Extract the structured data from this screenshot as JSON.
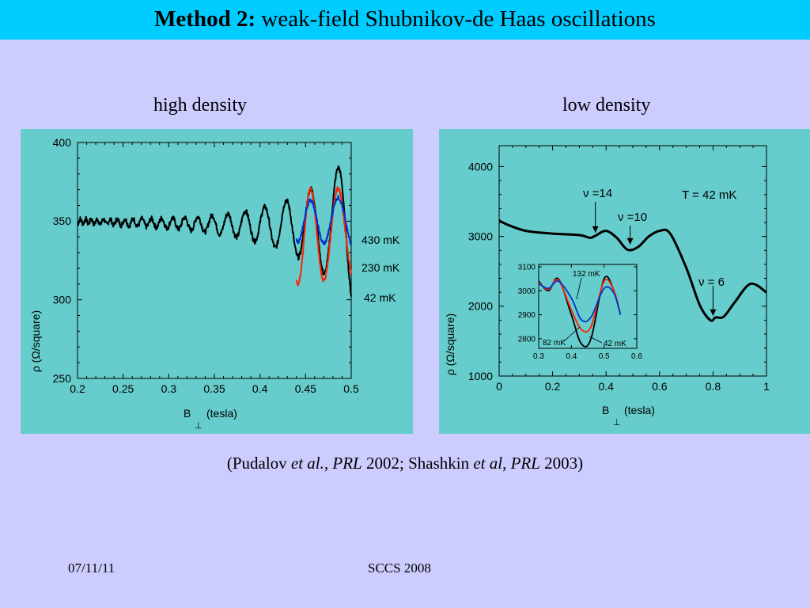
{
  "slide": {
    "title_bold": "Method 2:",
    "title_rest": " weak-field Shubnikov-de Haas oscillations",
    "footer_date": "07/11/11",
    "footer_event": "SCCS 2008"
  },
  "citation": {
    "p1": "(Pudalov ",
    "i1": "et al., PRL",
    "p2": " 2002; Shashkin ",
    "i2": "et al",
    "p3": ", ",
    "i3": "PRL",
    "p4": " 2003)"
  },
  "colors": {
    "title_bar": "#00ccff",
    "slide_background": "#ccccff",
    "panel_background": "#66cccc",
    "trace_42mK": "#000000",
    "trace_230mK": "#ff2200",
    "trace_430mK": "#0033cc",
    "trace_132mK": "#0033cc"
  },
  "chart_data": [
    {
      "heading": "high density",
      "type": "line",
      "xlabel": "B",
      "xlabel_sub": "⊥",
      "xlabel_unit": "(tesla)",
      "ylabel": "ρ (Ω/square)",
      "xlim": [
        0.2,
        0.5
      ],
      "ylim": [
        250,
        400
      ],
      "xticks": [
        "0.2",
        "0.25",
        "0.3",
        "0.35",
        "0.4",
        "0.45",
        "0.5"
      ],
      "yticks": [
        "250",
        "300",
        "350",
        "400"
      ],
      "grid": false,
      "legend_labels": [
        "430 mK",
        "230 mK",
        "42 mK"
      ],
      "series": [
        {
          "name": "42 mK",
          "color": "#000000",
          "model": {
            "x_start": 0.2,
            "x_end": 0.5,
            "base_start": 350,
            "base_end": 346,
            "amp_start": 1.5,
            "amp_end": 47,
            "period_start": 0.01,
            "period_end": 0.03,
            "x_min_at": 0.47,
            "noise": 1.6
          },
          "samples": [
            {
              "x": 0.2,
              "y": 350
            },
            {
              "x": 0.32,
              "y": 345
            },
            {
              "x": 0.4,
              "y": 320
            },
            {
              "x": 0.47,
              "y": 305
            },
            {
              "x": 0.485,
              "y": 390
            },
            {
              "x": 0.5,
              "y": 300
            }
          ]
        },
        {
          "name": "230 mK",
          "color": "#ff2200",
          "model": {
            "x_start": 0.44,
            "x_end": 0.5,
            "base_start": 340,
            "base_end": 343,
            "amp_start": 30,
            "amp_end": 28,
            "period_start": 0.028,
            "period_end": 0.03,
            "x_min_at": 0.47,
            "noise": 1.2
          },
          "samples": [
            {
              "x": 0.44,
              "y": 342
            },
            {
              "x": 0.455,
              "y": 368
            },
            {
              "x": 0.47,
              "y": 322
            },
            {
              "x": 0.485,
              "y": 375
            },
            {
              "x": 0.5,
              "y": 318
            }
          ]
        },
        {
          "name": "430 mK",
          "color": "#0033cc",
          "model": {
            "x_start": 0.44,
            "x_end": 0.5,
            "base_start": 350,
            "base_end": 350,
            "amp_start": 13,
            "amp_end": 16,
            "period_start": 0.028,
            "period_end": 0.03,
            "x_min_at": 0.47,
            "noise": 1.2
          },
          "samples": [
            {
              "x": 0.44,
              "y": 348
            },
            {
              "x": 0.455,
              "y": 360
            },
            {
              "x": 0.47,
              "y": 337
            },
            {
              "x": 0.485,
              "y": 366
            },
            {
              "x": 0.5,
              "y": 334
            }
          ]
        }
      ]
    },
    {
      "heading": "low density",
      "type": "line",
      "xlabel": "B",
      "xlabel_sub": "⊥",
      "xlabel_unit": "(tesla)",
      "ylabel": "ρ (Ω/square)",
      "xlim": [
        0,
        1
      ],
      "ylim": [
        1000,
        4300
      ],
      "xticks": [
        "0",
        "0.2",
        "0.4",
        "0.6",
        "0.8",
        "1"
      ],
      "yticks": [
        "1000",
        "2000",
        "3000",
        "4000"
      ],
      "grid": false,
      "annotations": [
        "ν =14",
        "ν =10",
        "ν = 6",
        "T = 42 mK"
      ],
      "annotation_x": [
        0.36,
        0.49,
        0.8
      ],
      "series": [
        {
          "name": "T = 42 mK",
          "color": "#000000",
          "points": [
            [
              0.0,
              3230
            ],
            [
              0.03,
              3170
            ],
            [
              0.1,
              3080
            ],
            [
              0.2,
              3040
            ],
            [
              0.3,
              3020
            ],
            [
              0.34,
              2980
            ],
            [
              0.36,
              3010
            ],
            [
              0.4,
              3080
            ],
            [
              0.44,
              2980
            ],
            [
              0.48,
              2810
            ],
            [
              0.52,
              2850
            ],
            [
              0.56,
              3000
            ],
            [
              0.6,
              3080
            ],
            [
              0.64,
              3040
            ],
            [
              0.7,
              2550
            ],
            [
              0.75,
              2020
            ],
            [
              0.79,
              1800
            ],
            [
              0.81,
              1840
            ],
            [
              0.84,
              1850
            ],
            [
              0.88,
              2050
            ],
            [
              0.94,
              2320
            ],
            [
              1.0,
              2200
            ]
          ]
        }
      ],
      "inset": {
        "xlim": [
          0.3,
          0.6
        ],
        "ylim": [
          2760,
          3110
        ],
        "xticks": [
          "0.3",
          "0.4",
          "0.5",
          "0.6"
        ],
        "yticks": [
          "2800",
          "2900",
          "3000",
          "3100"
        ],
        "labels": [
          "132 mK",
          "82 mK",
          "42 mK"
        ],
        "series": [
          {
            "name": "42 mK",
            "color": "#000000",
            "points": [
              [
                0.3,
                3040
              ],
              [
                0.33,
                3000
              ],
              [
                0.36,
                3050
              ],
              [
                0.4,
                2900
              ],
              [
                0.43,
                2780
              ],
              [
                0.46,
                2800
              ],
              [
                0.5,
                3050
              ],
              [
                0.53,
                3000
              ],
              [
                0.55,
                2900
              ]
            ]
          },
          {
            "name": "82 mK",
            "color": "#ff2200",
            "points": [
              [
                0.3,
                3035
              ],
              [
                0.33,
                3005
              ],
              [
                0.36,
                3045
              ],
              [
                0.4,
                2920
              ],
              [
                0.43,
                2840
              ],
              [
                0.46,
                2850
              ],
              [
                0.5,
                3040
              ],
              [
                0.53,
                3000
              ],
              [
                0.55,
                2900
              ]
            ]
          },
          {
            "name": "132 mK",
            "color": "#0033cc",
            "points": [
              [
                0.3,
                3030
              ],
              [
                0.33,
                3010
              ],
              [
                0.36,
                3040
              ],
              [
                0.4,
                2970
              ],
              [
                0.43,
                2880
              ],
              [
                0.46,
                2890
              ],
              [
                0.5,
                3010
              ],
              [
                0.53,
                2990
              ],
              [
                0.55,
                2900
              ]
            ]
          }
        ]
      }
    }
  ]
}
